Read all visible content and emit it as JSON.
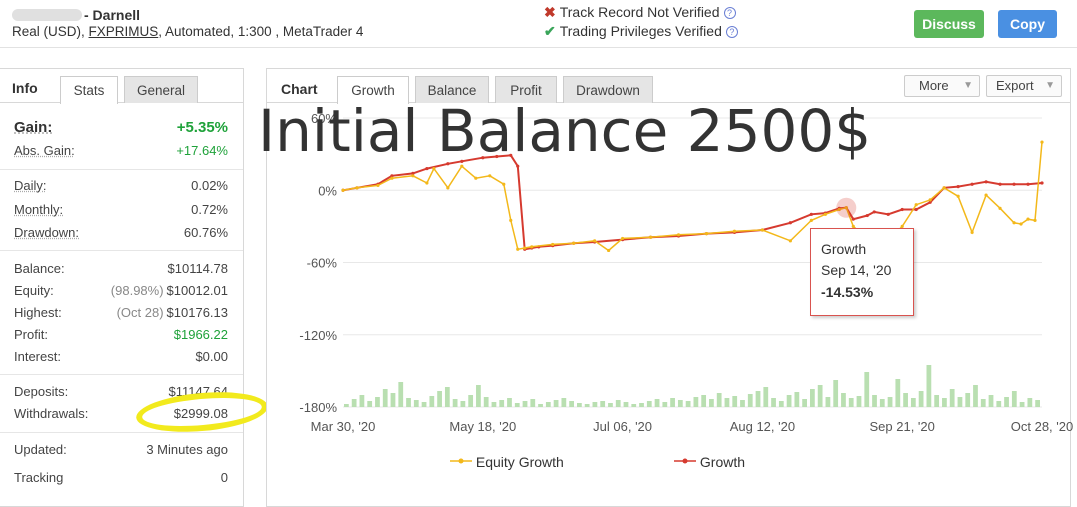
{
  "account": {
    "name": "- Darnell",
    "details_prefix": "Real (USD), ",
    "broker": "FXPRIMUS",
    "details_suffix": ", Automated, 1:300 , MetaTrader 4"
  },
  "verification": {
    "track_record": "Track Record Not Verified",
    "trading_privileges": "Trading Privileges Verified"
  },
  "buttons": {
    "discuss": "Discuss",
    "copy": "Copy"
  },
  "info": {
    "title": "Info",
    "tabs": [
      "Stats",
      "General"
    ],
    "gain": {
      "label": "Gain:",
      "value": "+5.35%"
    },
    "abs_gain": {
      "label": "Abs. Gain:",
      "value": "+17.64%"
    },
    "daily": {
      "label": "Daily:",
      "value": "0.02%"
    },
    "monthly": {
      "label": "Monthly:",
      "value": "0.72%"
    },
    "drawdown": {
      "label": "Drawdown:",
      "value": "60.76%"
    },
    "balance": {
      "label": "Balance:",
      "value": "$10114.78"
    },
    "equity": {
      "label": "Equity:",
      "sub": "(98.98%)",
      "value": "$10012.01"
    },
    "highest": {
      "label": "Highest:",
      "sub": "(Oct 28)",
      "value": "$10176.13"
    },
    "profit": {
      "label": "Profit:",
      "value": "$1966.22"
    },
    "interest": {
      "label": "Interest:",
      "value": "$0.00"
    },
    "deposits": {
      "label": "Deposits:",
      "value": "$11147.64"
    },
    "withdrawals": {
      "label": "Withdrawals:",
      "value": "$2999.08"
    },
    "updated": {
      "label": "Updated:",
      "value": "3 Minutes ago"
    },
    "tracking": {
      "label": "Tracking",
      "value": "0"
    }
  },
  "chart_panel": {
    "title": "Chart",
    "tabs": [
      "Growth",
      "Balance",
      "Profit",
      "Drawdown"
    ],
    "more": "More",
    "export": "Export",
    "overlay_text": "Initial Balance 2500$"
  },
  "tooltip": {
    "series": "Growth",
    "date": "Sep 14, '20",
    "value": "-14.53%"
  },
  "colors": {
    "growth": "#d63a2f",
    "equity": "#f3b81a",
    "volume": "#b9dfb1",
    "green_text": "#1fa23a",
    "discuss": "#5cb85c",
    "copy": "#4a90e2",
    "highlight": "#f2ea1d"
  },
  "chart_data": {
    "type": "line",
    "y_ticks": [
      "60%",
      "0%",
      "-60%",
      "-120%",
      "-180%"
    ],
    "y_tick_values": [
      60,
      0,
      -60,
      -120,
      -180
    ],
    "ylim": [
      -180,
      60
    ],
    "x_ticks": [
      "Mar 30, '20",
      "May 18, '20",
      "Jul 06, '20",
      "Aug 12, '20",
      "Sep 21, '20",
      "Oct 28, '20"
    ],
    "x_tick_positions": [
      0,
      0.2,
      0.4,
      0.6,
      0.8,
      1
    ],
    "legend": [
      "Equity Growth",
      "Growth"
    ],
    "series": [
      {
        "name": "Growth",
        "x": [
          0,
          0.02,
          0.05,
          0.07,
          0.1,
          0.12,
          0.15,
          0.17,
          0.2,
          0.22,
          0.24,
          0.25,
          0.26,
          0.27,
          0.28,
          0.3,
          0.33,
          0.36,
          0.4,
          0.44,
          0.48,
          0.52,
          0.56,
          0.6,
          0.64,
          0.67,
          0.69,
          0.71,
          0.72,
          0.73,
          0.75,
          0.76,
          0.78,
          0.8,
          0.82,
          0.84,
          0.86,
          0.88,
          0.9,
          0.92,
          0.94,
          0.96,
          0.98,
          1.0
        ],
        "values": [
          0,
          2,
          5,
          12,
          14,
          18,
          22,
          24,
          27,
          28,
          29,
          20,
          -49,
          -48,
          -47,
          -46,
          -44,
          -43,
          -41,
          -39,
          -38,
          -36,
          -35,
          -33,
          -27,
          -20,
          -19,
          -15,
          -14.53,
          -24,
          -21,
          -18,
          -20,
          -16,
          -16,
          -10,
          2,
          3,
          5,
          7,
          5,
          5,
          5,
          6
        ]
      },
      {
        "name": "Equity Growth",
        "x": [
          0,
          0.02,
          0.05,
          0.07,
          0.1,
          0.12,
          0.13,
          0.15,
          0.17,
          0.19,
          0.21,
          0.23,
          0.24,
          0.25,
          0.26,
          0.27,
          0.3,
          0.33,
          0.36,
          0.38,
          0.4,
          0.44,
          0.48,
          0.52,
          0.56,
          0.6,
          0.64,
          0.67,
          0.69,
          0.71,
          0.72,
          0.73,
          0.75,
          0.77,
          0.79,
          0.8,
          0.82,
          0.84,
          0.86,
          0.88,
          0.9,
          0.92,
          0.94,
          0.96,
          0.97,
          0.98,
          0.99,
          1.0
        ],
        "values": [
          0,
          2,
          4,
          10,
          12,
          6,
          18,
          2,
          20,
          10,
          12,
          5,
          -25,
          -49,
          -48,
          -47,
          -45,
          -44,
          -42,
          -50,
          -40,
          -39,
          -37,
          -36,
          -34,
          -33,
          -42,
          -25,
          -20,
          -16,
          -14.53,
          -30,
          -40,
          -58,
          -36,
          -30,
          -12,
          -8,
          2,
          -5,
          -35,
          -4,
          -15,
          -27,
          -28,
          -24,
          -25,
          40
        ]
      }
    ],
    "volume_bars": [
      3,
      8,
      12,
      6,
      10,
      18,
      14,
      25,
      9,
      7,
      5,
      11,
      16,
      20,
      8,
      6,
      12,
      22,
      10,
      5,
      7,
      9,
      4,
      6,
      8,
      3,
      5,
      7,
      9,
      6,
      4,
      3,
      5,
      6,
      4,
      7,
      5,
      3,
      4,
      6,
      8,
      5,
      9,
      7,
      6,
      10,
      12,
      8,
      14,
      9,
      11,
      7,
      13,
      16,
      20,
      9,
      6,
      12,
      15,
      8,
      18,
      22,
      10,
      27,
      14,
      9,
      11,
      35,
      12,
      8,
      10,
      28,
      14,
      9,
      16,
      42,
      12,
      9,
      18,
      10,
      14,
      22,
      8,
      12,
      6,
      10,
      16,
      5,
      9,
      7
    ]
  }
}
